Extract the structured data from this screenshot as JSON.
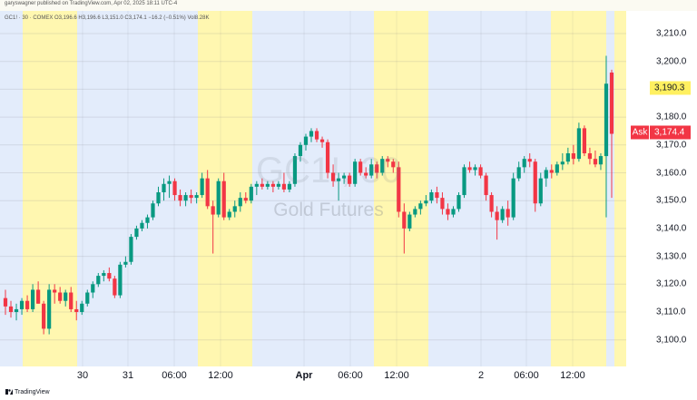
{
  "header": {
    "text": "garyswagner published on TradingView.com, Apr 02, 2025 18:11 UTC-4",
    "symbol_line": "GC1! · 30 · COMEX  O3,196.6  H3,196.6  L3,151.0  C3,174.1  −16.2 (−0.51%)  Vol8.28K"
  },
  "watermark": {
    "symbol": "GC1!, 30",
    "name": "Gold Futures"
  },
  "price_axis": {
    "ticks": [
      "3,100.0",
      "3,110.0",
      "3,120.0",
      "3,130.0",
      "3,140.0",
      "3,150.0",
      "3,160.0",
      "3,170.0",
      "3,180.0",
      "3,190.0",
      "3,200.0",
      "3,210.0"
    ],
    "last_price_label": "3,190.3",
    "ask_label": "Ask",
    "ask_price_label": "3,174.4"
  },
  "time_axis": {
    "labels": [
      {
        "text": "30",
        "bold": false
      },
      {
        "text": "31",
        "bold": false
      },
      {
        "text": "06:00",
        "bold": false
      },
      {
        "text": "12:00",
        "bold": false
      },
      {
        "text": "Apr",
        "bold": true
      },
      {
        "text": "06:00",
        "bold": false
      },
      {
        "text": "12:00",
        "bold": false
      },
      {
        "text": "2",
        "bold": false
      },
      {
        "text": "06:00",
        "bold": false
      },
      {
        "text": "12:00",
        "bold": false
      }
    ]
  },
  "footer": {
    "brand": "TradingView"
  },
  "colors": {
    "up": "#089981",
    "down": "#f23645",
    "session_yellow": "#fff7b0",
    "session_blue": "#e3ecfb",
    "badge_last": "#fff060",
    "badge_ask": "#f23645"
  },
  "chart_data": {
    "type": "candlestick",
    "symbol": "GC1!",
    "interval": "30",
    "exchange": "COMEX",
    "ylim": [
      3096,
      3214
    ],
    "grid": true,
    "candles": [
      {
        "o": 3115,
        "h": 3118,
        "l": 3109,
        "c": 3112
      },
      {
        "o": 3112,
        "h": 3114,
        "l": 3108,
        "c": 3110
      },
      {
        "o": 3110,
        "h": 3113,
        "l": 3107,
        "c": 3111
      },
      {
        "o": 3111,
        "h": 3115,
        "l": 3109,
        "c": 3114
      },
      {
        "o": 3114,
        "h": 3116,
        "l": 3110,
        "c": 3111
      },
      {
        "o": 3111,
        "h": 3120,
        "l": 3110,
        "c": 3118
      },
      {
        "o": 3118,
        "h": 3121,
        "l": 3113,
        "c": 3113
      },
      {
        "o": 3113,
        "h": 3114,
        "l": 3102,
        "c": 3104
      },
      {
        "o": 3104,
        "h": 3120,
        "l": 3102,
        "c": 3118
      },
      {
        "o": 3118,
        "h": 3120,
        "l": 3113,
        "c": 3117
      },
      {
        "o": 3117,
        "h": 3119,
        "l": 3113,
        "c": 3114
      },
      {
        "o": 3114,
        "h": 3118,
        "l": 3112,
        "c": 3117
      },
      {
        "o": 3117,
        "h": 3119,
        "l": 3110,
        "c": 3111
      },
      {
        "o": 3111,
        "h": 3114,
        "l": 3107,
        "c": 3110
      },
      {
        "o": 3110,
        "h": 3114,
        "l": 3109,
        "c": 3113
      },
      {
        "o": 3113,
        "h": 3118,
        "l": 3112,
        "c": 3117
      },
      {
        "o": 3117,
        "h": 3121,
        "l": 3115,
        "c": 3120
      },
      {
        "o": 3120,
        "h": 3124,
        "l": 3119,
        "c": 3123
      },
      {
        "o": 3123,
        "h": 3125,
        "l": 3121,
        "c": 3124
      },
      {
        "o": 3124,
        "h": 3126,
        "l": 3121,
        "c": 3122
      },
      {
        "o": 3122,
        "h": 3123,
        "l": 3115,
        "c": 3116
      },
      {
        "o": 3116,
        "h": 3128,
        "l": 3115,
        "c": 3127
      },
      {
        "o": 3127,
        "h": 3130,
        "l": 3126,
        "c": 3128
      },
      {
        "o": 3128,
        "h": 3138,
        "l": 3127,
        "c": 3137
      },
      {
        "o": 3137,
        "h": 3141,
        "l": 3136,
        "c": 3140
      },
      {
        "o": 3140,
        "h": 3143,
        "l": 3139,
        "c": 3142
      },
      {
        "o": 3142,
        "h": 3145,
        "l": 3140,
        "c": 3144
      },
      {
        "o": 3144,
        "h": 3150,
        "l": 3143,
        "c": 3149
      },
      {
        "o": 3149,
        "h": 3155,
        "l": 3148,
        "c": 3153
      },
      {
        "o": 3153,
        "h": 3158,
        "l": 3150,
        "c": 3156
      },
      {
        "o": 3156,
        "h": 3159,
        "l": 3151,
        "c": 3157
      },
      {
        "o": 3157,
        "h": 3158,
        "l": 3150,
        "c": 3152
      },
      {
        "o": 3152,
        "h": 3154,
        "l": 3148,
        "c": 3150
      },
      {
        "o": 3150,
        "h": 3153,
        "l": 3148,
        "c": 3152
      },
      {
        "o": 3152,
        "h": 3154,
        "l": 3149,
        "c": 3151
      },
      {
        "o": 3151,
        "h": 3153,
        "l": 3149,
        "c": 3152
      },
      {
        "o": 3152,
        "h": 3160,
        "l": 3151,
        "c": 3158
      },
      {
        "o": 3158,
        "h": 3161,
        "l": 3147,
        "c": 3148
      },
      {
        "o": 3148,
        "h": 3150,
        "l": 3131,
        "c": 3145
      },
      {
        "o": 3145,
        "h": 3158,
        "l": 3144,
        "c": 3157
      },
      {
        "o": 3157,
        "h": 3160,
        "l": 3143,
        "c": 3144
      },
      {
        "o": 3144,
        "h": 3147,
        "l": 3143,
        "c": 3146
      },
      {
        "o": 3146,
        "h": 3150,
        "l": 3144,
        "c": 3148
      },
      {
        "o": 3148,
        "h": 3153,
        "l": 3146,
        "c": 3151
      },
      {
        "o": 3151,
        "h": 3153,
        "l": 3149,
        "c": 3150
      },
      {
        "o": 3150,
        "h": 3156,
        "l": 3149,
        "c": 3155
      },
      {
        "o": 3155,
        "h": 3157,
        "l": 3152,
        "c": 3156
      },
      {
        "o": 3156,
        "h": 3158,
        "l": 3154,
        "c": 3155
      },
      {
        "o": 3155,
        "h": 3157,
        "l": 3154,
        "c": 3156
      },
      {
        "o": 3156,
        "h": 3157,
        "l": 3153,
        "c": 3155
      },
      {
        "o": 3155,
        "h": 3157,
        "l": 3154,
        "c": 3156
      },
      {
        "o": 3156,
        "h": 3160,
        "l": 3153,
        "c": 3154
      },
      {
        "o": 3154,
        "h": 3157,
        "l": 3153,
        "c": 3156
      },
      {
        "o": 3156,
        "h": 3167,
        "l": 3155,
        "c": 3166
      },
      {
        "o": 3166,
        "h": 3171,
        "l": 3164,
        "c": 3170
      },
      {
        "o": 3170,
        "h": 3174,
        "l": 3168,
        "c": 3173
      },
      {
        "o": 3173,
        "h": 3176,
        "l": 3171,
        "c": 3175
      },
      {
        "o": 3175,
        "h": 3176,
        "l": 3171,
        "c": 3172
      },
      {
        "o": 3172,
        "h": 3173,
        "l": 3169,
        "c": 3171
      },
      {
        "o": 3171,
        "h": 3172,
        "l": 3158,
        "c": 3160
      },
      {
        "o": 3160,
        "h": 3163,
        "l": 3155,
        "c": 3157
      },
      {
        "o": 3157,
        "h": 3160,
        "l": 3150,
        "c": 3158
      },
      {
        "o": 3158,
        "h": 3160,
        "l": 3156,
        "c": 3159
      },
      {
        "o": 3159,
        "h": 3160,
        "l": 3155,
        "c": 3156
      },
      {
        "o": 3156,
        "h": 3165,
        "l": 3155,
        "c": 3164
      },
      {
        "o": 3164,
        "h": 3165,
        "l": 3159,
        "c": 3160
      },
      {
        "o": 3160,
        "h": 3162,
        "l": 3158,
        "c": 3159
      },
      {
        "o": 3159,
        "h": 3165,
        "l": 3158,
        "c": 3163
      },
      {
        "o": 3163,
        "h": 3164,
        "l": 3158,
        "c": 3160
      },
      {
        "o": 3160,
        "h": 3166,
        "l": 3159,
        "c": 3165
      },
      {
        "o": 3165,
        "h": 3166,
        "l": 3162,
        "c": 3164
      },
      {
        "o": 3164,
        "h": 3165,
        "l": 3160,
        "c": 3162
      },
      {
        "o": 3162,
        "h": 3164,
        "l": 3144,
        "c": 3146
      },
      {
        "o": 3146,
        "h": 3149,
        "l": 3131,
        "c": 3140
      },
      {
        "o": 3140,
        "h": 3146,
        "l": 3139,
        "c": 3145
      },
      {
        "o": 3145,
        "h": 3148,
        "l": 3144,
        "c": 3147
      },
      {
        "o": 3147,
        "h": 3150,
        "l": 3145,
        "c": 3149
      },
      {
        "o": 3149,
        "h": 3152,
        "l": 3148,
        "c": 3150
      },
      {
        "o": 3150,
        "h": 3154,
        "l": 3149,
        "c": 3153
      },
      {
        "o": 3153,
        "h": 3155,
        "l": 3149,
        "c": 3151
      },
      {
        "o": 3151,
        "h": 3153,
        "l": 3145,
        "c": 3147
      },
      {
        "o": 3147,
        "h": 3149,
        "l": 3143,
        "c": 3145
      },
      {
        "o": 3145,
        "h": 3148,
        "l": 3144,
        "c": 3147
      },
      {
        "o": 3147,
        "h": 3153,
        "l": 3146,
        "c": 3152
      },
      {
        "o": 3152,
        "h": 3163,
        "l": 3151,
        "c": 3162
      },
      {
        "o": 3162,
        "h": 3164,
        "l": 3160,
        "c": 3161
      },
      {
        "o": 3161,
        "h": 3163,
        "l": 3159,
        "c": 3162
      },
      {
        "o": 3162,
        "h": 3163,
        "l": 3158,
        "c": 3159
      },
      {
        "o": 3159,
        "h": 3160,
        "l": 3150,
        "c": 3152
      },
      {
        "o": 3152,
        "h": 3153,
        "l": 3144,
        "c": 3146
      },
      {
        "o": 3146,
        "h": 3148,
        "l": 3136,
        "c": 3143
      },
      {
        "o": 3143,
        "h": 3148,
        "l": 3142,
        "c": 3147
      },
      {
        "o": 3147,
        "h": 3150,
        "l": 3141,
        "c": 3144
      },
      {
        "o": 3144,
        "h": 3160,
        "l": 3143,
        "c": 3158
      },
      {
        "o": 3158,
        "h": 3164,
        "l": 3157,
        "c": 3162
      },
      {
        "o": 3162,
        "h": 3166,
        "l": 3160,
        "c": 3165
      },
      {
        "o": 3165,
        "h": 3167,
        "l": 3162,
        "c": 3164
      },
      {
        "o": 3164,
        "h": 3165,
        "l": 3146,
        "c": 3149
      },
      {
        "o": 3149,
        "h": 3160,
        "l": 3148,
        "c": 3158
      },
      {
        "o": 3158,
        "h": 3162,
        "l": 3155,
        "c": 3161
      },
      {
        "o": 3161,
        "h": 3163,
        "l": 3158,
        "c": 3160
      },
      {
        "o": 3160,
        "h": 3164,
        "l": 3159,
        "c": 3163
      },
      {
        "o": 3163,
        "h": 3167,
        "l": 3161,
        "c": 3164
      },
      {
        "o": 3164,
        "h": 3169,
        "l": 3163,
        "c": 3167
      },
      {
        "o": 3167,
        "h": 3170,
        "l": 3163,
        "c": 3165
      },
      {
        "o": 3165,
        "h": 3178,
        "l": 3164,
        "c": 3176
      },
      {
        "o": 3176,
        "h": 3177,
        "l": 3166,
        "c": 3167
      },
      {
        "o": 3167,
        "h": 3169,
        "l": 3163,
        "c": 3165
      },
      {
        "o": 3165,
        "h": 3168,
        "l": 3162,
        "c": 3163
      },
      {
        "o": 3163,
        "h": 3167,
        "l": 3161,
        "c": 3166
      },
      {
        "o": 3166,
        "h": 3202,
        "l": 3144,
        "c": 3192
      },
      {
        "o": 3196,
        "h": 3197,
        "l": 3151,
        "c": 3174
      }
    ]
  }
}
